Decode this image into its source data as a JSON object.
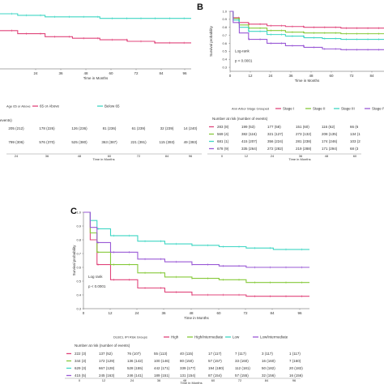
{
  "chart_data": [
    {
      "type": "line",
      "panel": "A",
      "xlabel": "Time in Months",
      "ylabel": "",
      "xlim": [
        0,
        100
      ],
      "ylim": [
        0.0,
        1.0
      ],
      "x_ticks": [
        "24",
        "36",
        "48",
        "60",
        "72",
        "84",
        "96"
      ],
      "legend_title": "Age 65 or Above",
      "legend_position": "bottom",
      "series": [
        {
          "name": "65 or Above",
          "color": "#e0457b",
          "x": [
            0,
            12,
            24,
            36,
            48,
            60,
            72,
            84,
            96
          ],
          "y": [
            0.72,
            0.7,
            0.68,
            0.66,
            0.65,
            0.64,
            0.63,
            0.62,
            0.62
          ]
        },
        {
          "name": "Below 65",
          "color": "#3fd6c4",
          "x": [
            0,
            12,
            24,
            36,
            48,
            60,
            72,
            84,
            96
          ],
          "y": [
            0.82,
            0.81,
            0.8,
            0.79,
            0.79,
            0.78,
            0.78,
            0.78,
            0.78
          ]
        }
      ],
      "risk_table": {
        "title": "events)",
        "rows": [
          {
            "color": "#e0457b",
            "cells": [
              "205 (212)",
              "178 (226)",
              "126 (236)",
              "81 (236)",
              "61 (239)",
              "32 (239)",
              "14 (240)"
            ]
          },
          {
            "color": "#3fd6c4",
            "cells": [
              "799 (306)",
              "576 (370)",
              "525 (380)",
              "363 (387)",
              "221 (391)",
              "115 (393)",
              "49 (393)"
            ]
          }
        ],
        "x_ticks": [
          "24",
          "36",
          "48",
          "60",
          "72",
          "84",
          "96"
        ],
        "xlabel": "Time in Months"
      }
    },
    {
      "type": "line",
      "panel": "B",
      "ylabel": "Survival probability",
      "xlabel": "Time in Months",
      "xlim": [
        0,
        100
      ],
      "ylim": [
        0.0,
        1.0
      ],
      "y_ticks": [
        "1.0",
        "0.9",
        "0.8",
        "0.7",
        "0.6",
        "0.5",
        "0.4",
        "0.3",
        "0.2",
        "0.1",
        "0.0"
      ],
      "x_ticks": [
        "0",
        "12",
        "24",
        "36",
        "48",
        "60",
        "72",
        "84"
      ],
      "annotation": [
        "Log-rank",
        "p < 0.0001"
      ],
      "legend_title": "Ann Arbor Stage Grouped",
      "legend_position": "bottom",
      "series": [
        {
          "name": "Stage I",
          "color": "#e0457b",
          "x": [
            0,
            2,
            6,
            12,
            24,
            36,
            48,
            60,
            72,
            84,
            96
          ],
          "y": [
            1.0,
            0.92,
            0.86,
            0.84,
            0.82,
            0.81,
            0.8,
            0.8,
            0.79,
            0.79,
            0.79
          ]
        },
        {
          "name": "Stage II",
          "color": "#86c93a",
          "x": [
            0,
            2,
            6,
            12,
            24,
            36,
            48,
            60,
            72,
            84,
            96
          ],
          "y": [
            1.0,
            0.91,
            0.83,
            0.79,
            0.76,
            0.74,
            0.73,
            0.73,
            0.72,
            0.72,
            0.72
          ]
        },
        {
          "name": "Stage III",
          "color": "#3fd6c4",
          "x": [
            0,
            2,
            6,
            12,
            24,
            36,
            48,
            60,
            72,
            84,
            96
          ],
          "y": [
            1.0,
            0.89,
            0.8,
            0.75,
            0.71,
            0.69,
            0.67,
            0.66,
            0.65,
            0.65,
            0.65
          ]
        },
        {
          "name": "Stage IV",
          "color": "#9a5ad6",
          "x": [
            0,
            2,
            6,
            12,
            24,
            36,
            48,
            60,
            72,
            84,
            96
          ],
          "y": [
            1.0,
            0.86,
            0.73,
            0.65,
            0.6,
            0.57,
            0.55,
            0.53,
            0.52,
            0.52,
            0.52
          ]
        }
      ],
      "risk_table": {
        "title": "Number at risk (number of events)",
        "rows": [
          {
            "color": "#e0457b",
            "cells": [
              "283 (8)",
              "199 (53)",
              "177 (58)",
              "151 (60)",
              "116 (62)",
              "66 (6"
            ]
          },
          {
            "color": "#86c93a",
            "cells": [
              "569 (4)",
              "382 (116)",
              "321 (127)",
              "273 (132)",
              "208 (135)",
              "134 (1"
            ]
          },
          {
            "color": "#3fd6c4",
            "cells": [
              "681 (1)",
              "415 (207)",
              "356 (224)",
              "281 (238)",
              "174 (246)",
              "103 (2"
            ]
          },
          {
            "color": "#9a5ad6",
            "cells": [
              "678 (9)",
              "335 (264)",
              "272 (282)",
              "219 (288)",
              "171 (294)",
              "68 (3"
            ]
          }
        ],
        "x_ticks": [
          "0",
          "12",
          "24",
          "36",
          "48",
          "60"
        ],
        "xlabel": "Time in Months"
      }
    },
    {
      "type": "line",
      "panel": "C",
      "ylabel": "Survival probability",
      "xlabel": "Time in Months",
      "xlim": [
        0,
        100
      ],
      "ylim": [
        0.0,
        1.0
      ],
      "y_ticks": [
        "1.0",
        "0.9",
        "0.8",
        "0.7",
        "0.6",
        "0.5",
        "0.4",
        "0.3",
        "0.2",
        "0.1",
        "0.0"
      ],
      "x_ticks": [
        "0",
        "12",
        "24",
        "36",
        "48",
        "60",
        "72",
        "84",
        "96"
      ],
      "annotation": [
        "Log rank",
        "p < 0.0001"
      ],
      "legend_title": "DLBCL IPI Risk Groups",
      "legend_position": "bottom",
      "series": [
        {
          "name": "High",
          "color": "#e0457b",
          "x": [
            0,
            3,
            6,
            12,
            24,
            36,
            48,
            60,
            72,
            84,
            96
          ],
          "y": [
            1.0,
            0.8,
            0.62,
            0.51,
            0.45,
            0.42,
            0.4,
            0.4,
            0.39,
            0.39,
            0.39
          ]
        },
        {
          "name": "High/intermediate",
          "color": "#86c93a",
          "x": [
            0,
            3,
            6,
            12,
            24,
            36,
            48,
            60,
            72,
            84,
            96
          ],
          "y": [
            1.0,
            0.85,
            0.71,
            0.62,
            0.56,
            0.53,
            0.52,
            0.51,
            0.49,
            0.49,
            0.49
          ]
        },
        {
          "name": "Low",
          "color": "#3fd6c4",
          "x": [
            0,
            3,
            6,
            12,
            24,
            36,
            48,
            60,
            72,
            84,
            96
          ],
          "y": [
            1.0,
            0.94,
            0.88,
            0.83,
            0.79,
            0.77,
            0.76,
            0.75,
            0.74,
            0.73,
            0.73
          ]
        },
        {
          "name": "Low/intermediate",
          "color": "#9a5ad6",
          "x": [
            0,
            3,
            6,
            12,
            24,
            36,
            48,
            60,
            72,
            84,
            96
          ],
          "y": [
            1.0,
            0.89,
            0.78,
            0.71,
            0.66,
            0.64,
            0.62,
            0.61,
            0.6,
            0.6,
            0.6
          ]
        }
      ],
      "risk_table": {
        "title": "Number at risk (number of events)",
        "rows": [
          {
            "color": "#e0457b",
            "cells": [
              "222 (3)",
              "137 (52)",
              "76 (107)",
              "55 (113)",
              "40 (115)",
              "17 (117)",
              "7 (117)",
              "3 (117)",
              "1 (117)"
            ]
          },
          {
            "color": "#86c93a",
            "cells": [
              "344 (3)",
              "172 (129)",
              "136 (142)",
              "100 (146)",
              "80 (150)",
              "57 (157)",
              "33 (160)",
              "16 (160)",
              "7 (160)"
            ]
          },
          {
            "color": "#3fd6c4",
            "cells": [
              "629 (3)",
              "667 (128)",
              "528 (155)",
              "442 (171)",
              "339 (177)",
              "194 (180)",
              "112 (181)",
              "50 (182)",
              "20 (182)"
            ]
          },
          {
            "color": "#9a5ad6",
            "cells": [
              "415 (5)",
              "245 (163)",
              "246 (141)",
              "189 (151)",
              "131 (154)",
              "87 (154)",
              "57 (155)",
              "32 (156)",
              "16 (156)"
            ]
          }
        ],
        "x_ticks": [
          "0",
          "12",
          "24",
          "36",
          "48",
          "60",
          "72",
          "84",
          "96"
        ],
        "xlabel": "Time in Months"
      }
    }
  ]
}
